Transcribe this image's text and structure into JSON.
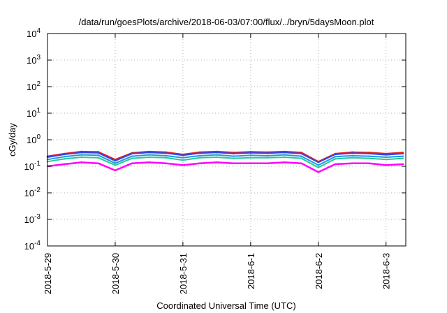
{
  "chart_data": {
    "type": "line",
    "title": "/data/run/goesPlots/archive/2018-06-03/07:00/flux/../bryn/5daysMoon.plot",
    "xlabel": "Coordinated Universal Time (UTC)",
    "ylabel": "cGy/day",
    "yscale": "log",
    "ylim": [
      0.0001,
      10000
    ],
    "y_ticks": [
      {
        "value": 0.0001,
        "base": "10",
        "exp": "-4"
      },
      {
        "value": 0.001,
        "base": "10",
        "exp": "-3"
      },
      {
        "value": 0.01,
        "base": "10",
        "exp": "-2"
      },
      {
        "value": 0.1,
        "base": "10",
        "exp": "-1"
      },
      {
        "value": 1,
        "base": "10",
        "exp": "0"
      },
      {
        "value": 10,
        "base": "10",
        "exp": "1"
      },
      {
        "value": 100,
        "base": "10",
        "exp": "2"
      },
      {
        "value": 1000,
        "base": "10",
        "exp": "3"
      },
      {
        "value": 10000,
        "base": "10",
        "exp": "4"
      }
    ],
    "xlim": [
      "2018-05-29 00:00",
      "2018-06-03 07:00"
    ],
    "x_ticks": [
      "2018-5-29",
      "2018-5-30",
      "2018-5-31",
      "2018-6-1",
      "2018-6-2",
      "2018-6-3"
    ],
    "grid": true,
    "x": [
      "2018-05-29 00:00",
      "2018-05-29 06:00",
      "2018-05-29 12:00",
      "2018-05-29 18:00",
      "2018-05-30 00:00",
      "2018-05-30 06:00",
      "2018-05-30 12:00",
      "2018-05-30 18:00",
      "2018-05-31 00:00",
      "2018-05-31 06:00",
      "2018-05-31 12:00",
      "2018-05-31 18:00",
      "2018-06-01 00:00",
      "2018-06-01 06:00",
      "2018-06-01 12:00",
      "2018-06-01 18:00",
      "2018-06-02 00:00",
      "2018-06-02 06:00",
      "2018-06-02 12:00",
      "2018-06-02 18:00",
      "2018-06-03 00:00",
      "2018-06-03 06:00"
    ],
    "series": [
      {
        "color": "#dd2222",
        "values": [
          0.24,
          0.3,
          0.36,
          0.35,
          0.18,
          0.32,
          0.36,
          0.34,
          0.28,
          0.34,
          0.36,
          0.33,
          0.35,
          0.34,
          0.36,
          0.33,
          0.15,
          0.3,
          0.34,
          0.33,
          0.3,
          0.33
        ]
      },
      {
        "color": "#3344ee",
        "values": [
          0.22,
          0.28,
          0.33,
          0.32,
          0.16,
          0.3,
          0.33,
          0.31,
          0.26,
          0.31,
          0.33,
          0.3,
          0.32,
          0.31,
          0.33,
          0.3,
          0.14,
          0.28,
          0.31,
          0.3,
          0.27,
          0.3
        ]
      },
      {
        "color": "#2299dd",
        "values": [
          0.18,
          0.23,
          0.27,
          0.26,
          0.13,
          0.24,
          0.27,
          0.25,
          0.21,
          0.25,
          0.27,
          0.24,
          0.26,
          0.25,
          0.27,
          0.24,
          0.11,
          0.23,
          0.25,
          0.24,
          0.22,
          0.24
        ]
      },
      {
        "color": "#22cc99",
        "values": [
          0.15,
          0.19,
          0.22,
          0.21,
          0.11,
          0.2,
          0.22,
          0.21,
          0.17,
          0.21,
          0.22,
          0.2,
          0.21,
          0.21,
          0.22,
          0.2,
          0.09,
          0.19,
          0.21,
          0.2,
          0.18,
          0.2
        ]
      },
      {
        "color": "#ff00ff",
        "values": [
          0.1,
          0.12,
          0.14,
          0.13,
          0.07,
          0.13,
          0.14,
          0.13,
          0.11,
          0.13,
          0.14,
          0.13,
          0.13,
          0.13,
          0.14,
          0.13,
          0.06,
          0.12,
          0.13,
          0.13,
          0.11,
          0.12
        ]
      }
    ]
  }
}
